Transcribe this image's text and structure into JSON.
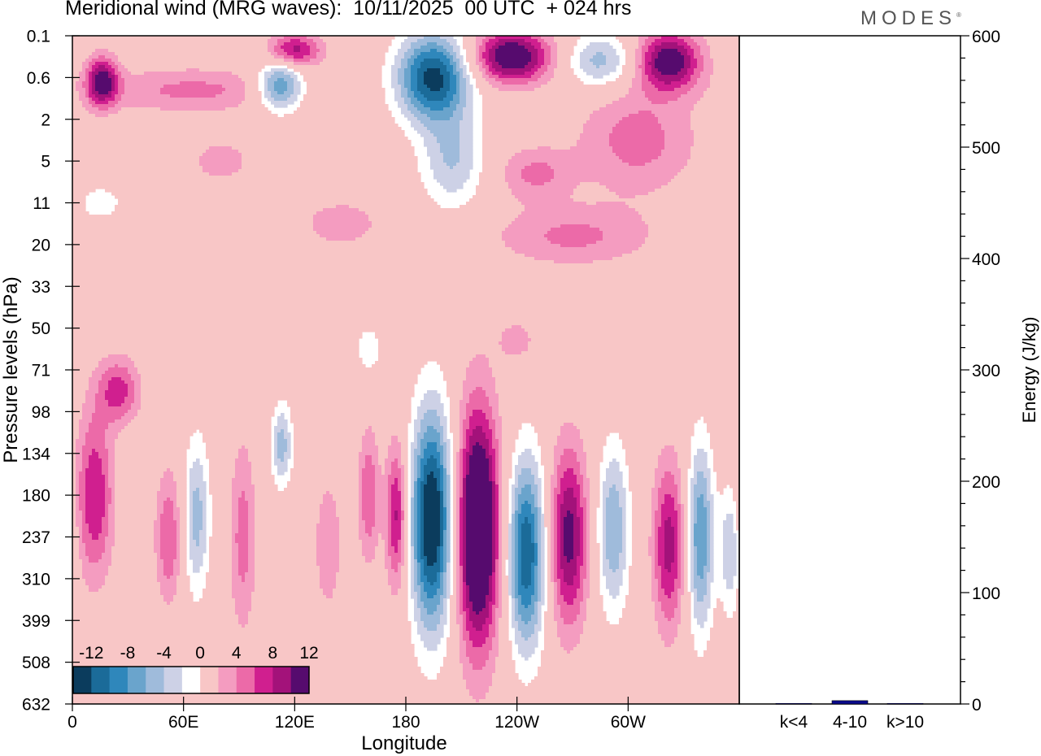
{
  "title": "Meridional wind (MRG waves):  10/11/2025  00 UTC  + 024 hrs",
  "brand": "MODES",
  "brand_mark": "®",
  "colors": {
    "neg": [
      "#0b3c5d",
      "#1b6b99",
      "#2f87bb",
      "#6aa4cc",
      "#9fbbdb",
      "#cdd1e6"
    ],
    "zero": "#ffffff",
    "pos": [
      "#f8c6c6",
      "#f49cc0",
      "#ec6aa8",
      "#d01f8f",
      "#a3127a",
      "#560b6e"
    ],
    "bar": "#0a0a8c"
  },
  "chart_data": [
    {
      "type": "heatmap",
      "title": "Meridional wind (MRG waves)",
      "xlabel": "Longitude",
      "ylabel": "Pressure levels (hPa)",
      "x_ticks": [
        "0",
        "60E",
        "120E",
        "180",
        "120W",
        "60W"
      ],
      "x_range": [
        0,
        360
      ],
      "y_ticks": [
        "0.1",
        "0.6",
        "2",
        "5",
        "11",
        "20",
        "33",
        "50",
        "71",
        "98",
        "134",
        "180",
        "237",
        "310",
        "399",
        "508",
        "632"
      ],
      "colorbar": {
        "labels": [
          "-12",
          "-8",
          "-4",
          "0",
          "4",
          "8",
          "12"
        ],
        "levels": [
          -14,
          -12,
          -10,
          -8,
          -6,
          -4,
          -2,
          2,
          4,
          6,
          8,
          10,
          12,
          14
        ]
      },
      "features": [
        {
          "lon": 16,
          "lev": 1.1,
          "sx": 6,
          "sy": 0.42,
          "amp": 11
        },
        {
          "lon": 65,
          "lev": 1.3,
          "sx": 38,
          "sy": 0.38,
          "amp": 4.5
        },
        {
          "lon": 112,
          "lev": 1.2,
          "sx": 9,
          "sy": 0.42,
          "amp": -11
        },
        {
          "lon": 120,
          "lev": 0.35,
          "sx": 10,
          "sy": 0.28,
          "amp": 9
        },
        {
          "lon": 195,
          "lev": 1.0,
          "sx": 14,
          "sy": 0.75,
          "amp": -15
        },
        {
          "lon": 205,
          "lev": 3.0,
          "sx": 12,
          "sy": 0.8,
          "amp": -6
        },
        {
          "lon": 237,
          "lev": 0.5,
          "sx": 15,
          "sy": 0.45,
          "amp": 13
        },
        {
          "lon": 285,
          "lev": 0.6,
          "sx": 13,
          "sy": 0.45,
          "amp": -7
        },
        {
          "lon": 322,
          "lev": 0.6,
          "sx": 12,
          "sy": 0.5,
          "amp": 12
        },
        {
          "lon": 305,
          "lev": 2.5,
          "sx": 22,
          "sy": 0.9,
          "amp": 5
        },
        {
          "lon": 250,
          "lev": 3.3,
          "sx": 14,
          "sy": 0.45,
          "amp": 4.5
        },
        {
          "lon": 80,
          "lev": 3.0,
          "sx": 10,
          "sy": 0.3,
          "amp": 4
        },
        {
          "lon": 145,
          "lev": 4.5,
          "sx": 15,
          "sy": 0.4,
          "amp": 3.5
        },
        {
          "lon": 270,
          "lev": 4.8,
          "sx": 30,
          "sy": 0.5,
          "amp": 4.5
        },
        {
          "lon": 15,
          "lev": 4.0,
          "sx": 10,
          "sy": 0.35,
          "amp": -3
        },
        {
          "lon": 25,
          "lev": 8.5,
          "sx": 8,
          "sy": 0.55,
          "amp": 7
        },
        {
          "lon": 240,
          "lev": 7.3,
          "sx": 8,
          "sy": 0.4,
          "amp": 3
        },
        {
          "lon": 160,
          "lev": 7.5,
          "sx": 6,
          "sy": 0.5,
          "amp": -3
        },
        {
          "lon": 12,
          "lev": 11.0,
          "sx": 7,
          "sy": 1.4,
          "amp": 8
        },
        {
          "lon": 52,
          "lev": 12.0,
          "sx": 5,
          "sy": 1.1,
          "amp": 6
        },
        {
          "lon": 67,
          "lev": 11.5,
          "sx": 5,
          "sy": 1.3,
          "amp": -7
        },
        {
          "lon": 92,
          "lev": 12.0,
          "sx": 5,
          "sy": 1.6,
          "amp": 5
        },
        {
          "lon": 113,
          "lev": 9.8,
          "sx": 4,
          "sy": 0.7,
          "amp": -7
        },
        {
          "lon": 138,
          "lev": 12.2,
          "sx": 5,
          "sy": 1.1,
          "amp": 4
        },
        {
          "lon": 160,
          "lev": 11.0,
          "sx": 4,
          "sy": 1.1,
          "amp": 6
        },
        {
          "lon": 175,
          "lev": 11.5,
          "sx": 4,
          "sy": 1.2,
          "amp": 9
        },
        {
          "lon": 194,
          "lev": 11.6,
          "sx": 8,
          "sy": 1.85,
          "amp": -17
        },
        {
          "lon": 219,
          "lev": 11.8,
          "sx": 8,
          "sy": 2.0,
          "amp": 17
        },
        {
          "lon": 245,
          "lev": 12.4,
          "sx": 7,
          "sy": 1.6,
          "amp": -14
        },
        {
          "lon": 268,
          "lev": 12.0,
          "sx": 7,
          "sy": 1.5,
          "amp": 11
        },
        {
          "lon": 292,
          "lev": 11.8,
          "sx": 6,
          "sy": 1.4,
          "amp": -8
        },
        {
          "lon": 322,
          "lev": 12.2,
          "sx": 6,
          "sy": 1.4,
          "amp": 9
        },
        {
          "lon": 339,
          "lev": 12.0,
          "sx": 5,
          "sy": 1.6,
          "amp": -10
        },
        {
          "lon": 355,
          "lev": 12.3,
          "sx": 4,
          "sy": 1.1,
          "amp": -6
        }
      ]
    },
    {
      "type": "bar",
      "ylabel": "Energy (J/kg)",
      "ylim": [
        0,
        600
      ],
      "y_ticks": [
        "0",
        "100",
        "200",
        "300",
        "400",
        "500",
        "600"
      ],
      "categories": [
        "k<4",
        "4-10",
        "k>10"
      ],
      "values": [
        0.5,
        3,
        0.5
      ]
    }
  ]
}
